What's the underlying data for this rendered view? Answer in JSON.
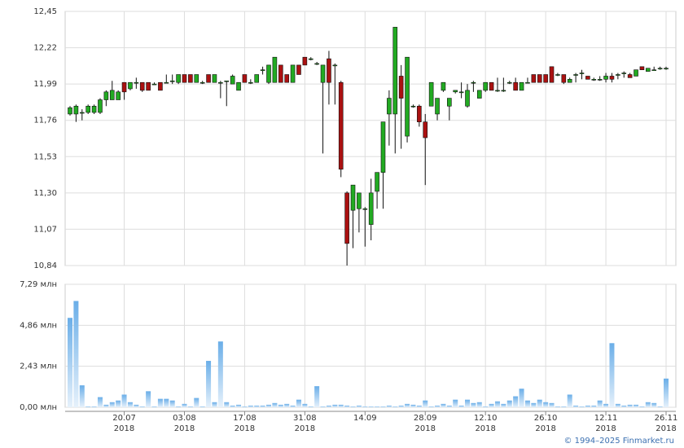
{
  "chart_data": {
    "type": "candlestick",
    "categories": [
      null,
      null,
      null,
      null,
      null,
      null,
      null,
      null,
      null,
      "20.07\n2018",
      null,
      null,
      null,
      null,
      null,
      null,
      null,
      null,
      null,
      "03.08\n2018",
      null,
      null,
      null,
      null,
      null,
      null,
      null,
      null,
      null,
      "17.08\n2018",
      null,
      null,
      null,
      null,
      null,
      null,
      null,
      null,
      null,
      "31.08\n2018",
      null,
      null,
      null,
      null,
      null,
      null,
      null,
      null,
      null,
      "14.09",
      null,
      null,
      null,
      null,
      null,
      null,
      null,
      null,
      null,
      "28.09\n2018",
      null,
      null,
      null,
      null,
      null,
      null,
      null,
      null,
      null,
      "12.10\n2018",
      null,
      null,
      null,
      null,
      null,
      null,
      null,
      null,
      null,
      "26.10\n2018",
      null,
      null,
      null,
      null,
      null,
      null,
      null,
      null,
      null,
      "12.11\n2018",
      null,
      null,
      null,
      null,
      null,
      null,
      null,
      null,
      null,
      "26.11\n2018"
    ],
    "open": [
      11.8,
      11.8,
      11.81,
      11.81,
      11.81,
      11.81,
      11.89,
      11.89,
      11.89,
      12.0,
      11.96,
      12.0,
      12.0,
      12.0,
      11.99,
      12.0,
      12.0,
      12.01,
      12.0,
      12.05,
      12.05,
      12.0,
      12.0,
      12.05,
      12.0,
      12.0,
      12.01,
      11.99,
      11.95,
      12.05,
      12.0,
      12.0,
      12.08,
      12.0,
      12.0,
      12.11,
      12.05,
      12.0,
      12.11,
      12.16,
      12.15,
      12.12,
      12.0,
      12.15,
      12.11,
      12.0,
      11.3,
      11.19,
      11.2,
      11.2,
      11.1,
      11.31,
      11.43,
      11.8,
      11.8,
      12.04,
      11.66,
      11.85,
      11.85,
      11.75,
      11.85,
      11.8,
      11.95,
      11.85,
      11.94,
      11.94,
      11.85,
      12.0,
      11.9,
      11.95,
      12.0,
      11.95,
      11.95,
      12.0,
      12.0,
      11.95,
      12.0,
      12.05,
      12.05,
      12.05,
      12.1,
      12.05,
      12.05,
      12.0,
      12.05,
      12.06,
      12.04,
      12.02,
      12.02,
      12.02,
      12.04,
      12.05,
      12.06,
      12.05,
      12.04,
      12.1,
      12.07,
      12.08,
      12.09,
      12.09
    ],
    "high": [
      11.85,
      11.86,
      11.83,
      11.86,
      11.86,
      11.9,
      11.95,
      12.01,
      11.95,
      12.0,
      12.0,
      12.03,
      12.0,
      12.0,
      12.0,
      12.0,
      12.05,
      12.05,
      12.05,
      12.05,
      12.05,
      12.05,
      12.01,
      12.05,
      12.05,
      12.01,
      12.01,
      12.05,
      12.0,
      12.05,
      12.02,
      12.05,
      12.1,
      12.11,
      12.16,
      12.11,
      12.05,
      12.11,
      12.11,
      12.16,
      12.16,
      12.13,
      12.11,
      12.2,
      12.12,
      12.01,
      11.31,
      11.35,
      11.3,
      11.21,
      11.39,
      11.43,
      11.75,
      11.95,
      12.35,
      12.11,
      12.16,
      11.86,
      11.86,
      11.8,
      12.0,
      11.9,
      12.0,
      11.9,
      11.95,
      12.0,
      11.99,
      12.01,
      11.95,
      12.0,
      12.0,
      12.03,
      12.03,
      12.01,
      12.03,
      12.0,
      12.03,
      12.05,
      12.05,
      12.05,
      12.1,
      12.06,
      12.05,
      12.03,
      12.06,
      12.08,
      12.04,
      12.03,
      12.04,
      12.06,
      12.06,
      12.06,
      12.07,
      12.06,
      12.08,
      12.1,
      12.09,
      12.1,
      12.1,
      12.1
    ],
    "low": [
      11.79,
      11.75,
      11.76,
      11.8,
      11.8,
      11.8,
      11.85,
      11.89,
      11.89,
      11.89,
      11.95,
      11.96,
      11.94,
      11.95,
      11.99,
      11.95,
      12.0,
      11.99,
      11.99,
      12.0,
      12.0,
      12.0,
      11.99,
      12.0,
      12.0,
      11.9,
      11.85,
      11.99,
      11.95,
      12.0,
      11.99,
      12.0,
      12.05,
      11.99,
      12.0,
      12.0,
      12.0,
      12.0,
      12.05,
      12.11,
      12.14,
      12.11,
      11.55,
      11.86,
      11.86,
      11.4,
      10.84,
      10.95,
      11.05,
      10.96,
      11.0,
      11.2,
      11.2,
      11.6,
      11.55,
      11.58,
      11.62,
      11.84,
      11.72,
      11.35,
      11.85,
      11.76,
      11.94,
      11.76,
      11.93,
      11.9,
      11.84,
      11.94,
      11.9,
      11.94,
      11.95,
      11.94,
      11.94,
      11.99,
      11.95,
      11.95,
      12.0,
      12.0,
      12.0,
      12.0,
      12.0,
      12.04,
      11.99,
      12.0,
      12.0,
      12.02,
      12.02,
      12.01,
      12.01,
      12.0,
      12.0,
      12.02,
      12.03,
      12.03,
      12.04,
      12.08,
      12.07,
      12.08,
      12.08,
      12.08
    ],
    "close": [
      11.84,
      11.85,
      11.81,
      11.85,
      11.85,
      11.89,
      11.94,
      11.95,
      11.94,
      11.94,
      12.0,
      12.0,
      11.95,
      11.95,
      11.99,
      11.95,
      12.0,
      12.01,
      12.05,
      12.0,
      12.0,
      12.05,
      12.0,
      12.0,
      12.05,
      12.0,
      12.01,
      12.04,
      12.0,
      12.0,
      12.0,
      12.05,
      12.08,
      12.11,
      12.16,
      12.0,
      12.0,
      12.11,
      12.05,
      12.11,
      12.15,
      12.12,
      12.11,
      12.0,
      12.11,
      11.45,
      10.98,
      11.35,
      11.3,
      11.2,
      11.3,
      11.43,
      11.75,
      11.9,
      12.35,
      11.9,
      12.16,
      11.85,
      11.75,
      11.65,
      12.0,
      11.9,
      12.0,
      11.9,
      11.95,
      11.94,
      11.95,
      12.0,
      11.95,
      12.0,
      11.95,
      11.95,
      11.95,
      12.0,
      11.95,
      12.0,
      12.0,
      12.0,
      12.0,
      12.0,
      12.0,
      12.05,
      12.0,
      12.02,
      12.05,
      12.06,
      12.02,
      12.02,
      12.02,
      12.04,
      12.02,
      12.05,
      12.06,
      12.03,
      12.08,
      12.08,
      12.09,
      12.08,
      12.09,
      12.09
    ],
    "up_color": "#22aa22",
    "down_color": "#aa1111",
    "ylim": [
      10.84,
      12.45
    ],
    "yticks": [
      {
        "value": 10.84,
        "label": "10,84"
      },
      {
        "value": 11.07,
        "label": "11,07"
      },
      {
        "value": 11.3,
        "label": "11,30"
      },
      {
        "value": 11.53,
        "label": "11,53"
      },
      {
        "value": 11.76,
        "label": "11,76"
      },
      {
        "value": 11.99,
        "label": "11,99"
      },
      {
        "value": 12.22,
        "label": "12,22"
      },
      {
        "value": 12.45,
        "label": "12,45"
      }
    ],
    "grid": true,
    "volume": {
      "type": "bar",
      "color": "#6aaee8",
      "values": [
        5.3,
        6.3,
        1.3,
        0.05,
        0.05,
        0.6,
        0.15,
        0.3,
        0.4,
        0.75,
        0.3,
        0.15,
        0.05,
        0.95,
        0.05,
        0.5,
        0.5,
        0.4,
        0.05,
        0.2,
        0.05,
        0.55,
        0.05,
        2.75,
        0.3,
        3.9,
        0.3,
        0.1,
        0.15,
        0.05,
        0.1,
        0.1,
        0.1,
        0.15,
        0.25,
        0.15,
        0.2,
        0.1,
        0.45,
        0.2,
        0.05,
        1.25,
        0.05,
        0.1,
        0.15,
        0.15,
        0.1,
        0.05,
        0.1,
        0.05,
        0.05,
        0.05,
        0.05,
        0.1,
        0.05,
        0.1,
        0.2,
        0.15,
        0.1,
        0.4,
        0.05,
        0.1,
        0.2,
        0.1,
        0.45,
        0.1,
        0.45,
        0.25,
        0.3,
        0.05,
        0.2,
        0.35,
        0.2,
        0.4,
        0.65,
        1.1,
        0.4,
        0.25,
        0.45,
        0.3,
        0.25,
        0.05,
        0.05,
        0.75,
        0.1,
        0.05,
        0.1,
        0.1,
        0.4,
        0.2,
        3.8,
        0.2,
        0.1,
        0.15,
        0.15,
        0.05,
        0.3,
        0.25,
        0.05,
        1.7
      ],
      "ylim": [
        0,
        7.29
      ],
      "yticks": [
        {
          "value": 0,
          "label": "0,00 млн"
        },
        {
          "value": 2.43,
          "label": "2,43 млн"
        },
        {
          "value": 4.86,
          "label": "4,86 млн"
        },
        {
          "value": 7.29,
          "label": "7,29 млн"
        }
      ]
    }
  },
  "footer": "© 1994–2025 Finmarket.ru"
}
